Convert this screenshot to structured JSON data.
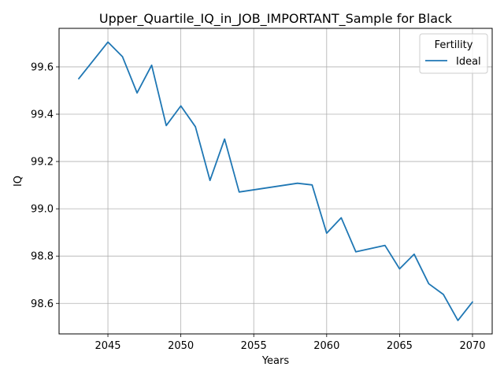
{
  "chart_data": {
    "type": "line",
    "title": "Upper_Quartile_IQ_in_JOB_IMPORTANT_Sample for Black",
    "xlabel": "Years",
    "ylabel": "IQ",
    "xlim": [
      2041.65,
      2071.35
    ],
    "ylim": [
      98.471,
      99.763
    ],
    "xticks": [
      2045,
      2050,
      2055,
      2060,
      2065,
      2070
    ],
    "yticks": [
      98.6,
      98.8,
      99.0,
      99.2,
      99.4,
      99.6
    ],
    "ytick_labels": [
      "98.6",
      "98.8",
      "99.0",
      "99.2",
      "99.4",
      "99.6"
    ],
    "grid": true,
    "legend": {
      "title": "Fertility",
      "placement": "top-right"
    },
    "series": [
      {
        "name": "Ideal",
        "color": "#1f77b4",
        "x": [
          2043,
          2045,
          2046,
          2047,
          2048,
          2049,
          2050,
          2051,
          2052,
          2053,
          2054,
          2058,
          2059,
          2060,
          2061,
          2062,
          2064,
          2065,
          2066,
          2067,
          2068,
          2069,
          2070
        ],
        "y": [
          99.55,
          99.705,
          99.643,
          99.49,
          99.607,
          99.352,
          99.435,
          99.347,
          99.12,
          99.295,
          99.071,
          99.108,
          99.101,
          98.897,
          98.962,
          98.818,
          98.845,
          98.746,
          98.808,
          98.683,
          98.638,
          98.528,
          98.606
        ]
      }
    ]
  }
}
